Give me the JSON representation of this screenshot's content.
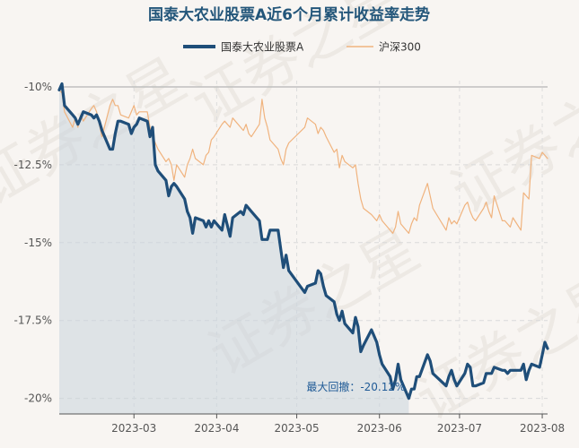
{
  "chart_data": {
    "type": "line",
    "title": "国泰大农业股票A近6个月累计收益率走势",
    "legend_position": "top",
    "series": [
      {
        "name": "国泰大农业股票A",
        "color": "#1f4e79",
        "points": [
          [
            "2023-02-01",
            -10.1
          ],
          [
            "2023-02-02",
            -9.9
          ],
          [
            "2023-02-03",
            -10.6
          ],
          [
            "2023-02-06",
            -10.9
          ],
          [
            "2023-02-07",
            -11.0
          ],
          [
            "2023-02-08",
            -11.2
          ],
          [
            "2023-02-09",
            -11.0
          ],
          [
            "2023-02-10",
            -10.8
          ],
          [
            "2023-02-13",
            -10.9
          ],
          [
            "2023-02-14",
            -11.0
          ],
          [
            "2023-02-15",
            -10.9
          ],
          [
            "2023-02-16",
            -11.1
          ],
          [
            "2023-02-17",
            -11.4
          ],
          [
            "2023-02-20",
            -12.0
          ],
          [
            "2023-02-21",
            -12.0
          ],
          [
            "2023-02-22",
            -11.5
          ],
          [
            "2023-02-23",
            -11.1
          ],
          [
            "2023-02-24",
            -11.1
          ],
          [
            "2023-02-27",
            -11.2
          ],
          [
            "2023-02-28",
            -11.5
          ],
          [
            "2023-03-01",
            -11.3
          ],
          [
            "2023-03-02",
            -11.2
          ],
          [
            "2023-03-03",
            -11.0
          ],
          [
            "2023-03-06",
            -11.1
          ],
          [
            "2023-03-07",
            -11.6
          ],
          [
            "2023-03-08",
            -11.3
          ],
          [
            "2023-03-09",
            -12.5
          ],
          [
            "2023-03-10",
            -12.7
          ],
          [
            "2023-03-13",
            -13.0
          ],
          [
            "2023-03-14",
            -13.5
          ],
          [
            "2023-03-15",
            -13.2
          ],
          [
            "2023-03-16",
            -13.1
          ],
          [
            "2023-03-17",
            -13.2
          ],
          [
            "2023-03-20",
            -13.6
          ],
          [
            "2023-03-21",
            -14.0
          ],
          [
            "2023-03-22",
            -14.2
          ],
          [
            "2023-03-23",
            -14.7
          ],
          [
            "2023-03-24",
            -14.2
          ],
          [
            "2023-03-27",
            -14.3
          ],
          [
            "2023-03-28",
            -14.5
          ],
          [
            "2023-03-29",
            -14.3
          ],
          [
            "2023-03-30",
            -14.5
          ],
          [
            "2023-03-31",
            -14.3
          ],
          [
            "2023-04-03",
            -14.6
          ],
          [
            "2023-04-04",
            -14.1
          ],
          [
            "2023-04-06",
            -14.8
          ],
          [
            "2023-04-07",
            -14.2
          ],
          [
            "2023-04-10",
            -14.0
          ],
          [
            "2023-04-11",
            -14.1
          ],
          [
            "2023-04-12",
            -13.8
          ],
          [
            "2023-04-13",
            -13.9
          ],
          [
            "2023-04-14",
            -14.0
          ],
          [
            "2023-04-17",
            -14.3
          ],
          [
            "2023-04-18",
            -14.9
          ],
          [
            "2023-04-19",
            -14.9
          ],
          [
            "2023-04-20",
            -14.9
          ],
          [
            "2023-04-21",
            -14.6
          ],
          [
            "2023-04-24",
            -14.6
          ],
          [
            "2023-04-25",
            -15.2
          ],
          [
            "2023-04-26",
            -15.8
          ],
          [
            "2023-04-27",
            -15.4
          ],
          [
            "2023-04-28",
            -15.9
          ],
          [
            "2023-05-04",
            -16.6
          ],
          [
            "2023-05-05",
            -16.4
          ],
          [
            "2023-05-08",
            -16.3
          ],
          [
            "2023-05-09",
            -15.9
          ],
          [
            "2023-05-10",
            -16.0
          ],
          [
            "2023-05-11",
            -16.4
          ],
          [
            "2023-05-12",
            -16.7
          ],
          [
            "2023-05-15",
            -16.9
          ],
          [
            "2023-05-16",
            -17.3
          ],
          [
            "2023-05-17",
            -17.5
          ],
          [
            "2023-05-18",
            -17.2
          ],
          [
            "2023-05-19",
            -17.6
          ],
          [
            "2023-05-22",
            -17.9
          ],
          [
            "2023-05-23",
            -17.4
          ],
          [
            "2023-05-24",
            -17.7
          ],
          [
            "2023-05-25",
            -18.5
          ],
          [
            "2023-05-26",
            -18.3
          ],
          [
            "2023-05-29",
            -17.8
          ],
          [
            "2023-05-30",
            -18.0
          ],
          [
            "2023-05-31",
            -18.2
          ],
          [
            "2023-06-01",
            -18.6
          ],
          [
            "2023-06-02",
            -18.9
          ],
          [
            "2023-06-05",
            -19.3
          ],
          [
            "2023-06-06",
            -19.7
          ],
          [
            "2023-06-07",
            -19.4
          ],
          [
            "2023-06-08",
            -18.9
          ],
          [
            "2023-06-09",
            -19.4
          ],
          [
            "2023-06-12",
            -20.0
          ],
          [
            "2023-06-13",
            -19.7
          ],
          [
            "2023-06-14",
            -19.7
          ],
          [
            "2023-06-15",
            -19.3
          ],
          [
            "2023-06-16",
            -19.3
          ],
          [
            "2023-06-19",
            -18.6
          ],
          [
            "2023-06-20",
            -18.8
          ],
          [
            "2023-06-21",
            -19.2
          ],
          [
            "2023-06-26",
            -19.6
          ],
          [
            "2023-06-27",
            -19.3
          ],
          [
            "2023-06-28",
            -19.1
          ],
          [
            "2023-06-29",
            -19.4
          ],
          [
            "2023-06-30",
            -19.6
          ],
          [
            "2023-07-03",
            -19.2
          ],
          [
            "2023-07-04",
            -18.9
          ],
          [
            "2023-07-05",
            -19.0
          ],
          [
            "2023-07-06",
            -19.6
          ],
          [
            "2023-07-07",
            -19.6
          ],
          [
            "2023-07-10",
            -19.5
          ],
          [
            "2023-07-11",
            -19.2
          ],
          [
            "2023-07-12",
            -19.2
          ],
          [
            "2023-07-13",
            -19.2
          ],
          [
            "2023-07-14",
            -19.0
          ],
          [
            "2023-07-17",
            -19.1
          ],
          [
            "2023-07-18",
            -19.1
          ],
          [
            "2023-07-19",
            -19.2
          ],
          [
            "2023-07-20",
            -19.1
          ],
          [
            "2023-07-21",
            -19.1
          ],
          [
            "2023-07-24",
            -19.1
          ],
          [
            "2023-07-25",
            -18.9
          ],
          [
            "2023-07-26",
            -19.4
          ],
          [
            "2023-07-27",
            -19.1
          ],
          [
            "2023-07-28",
            -18.9
          ],
          [
            "2023-07-31",
            -19.0
          ],
          [
            "2023-08-01",
            -18.6
          ],
          [
            "2023-08-02",
            -18.2
          ],
          [
            "2023-08-03",
            -18.4
          ]
        ]
      },
      {
        "name": "沪深300",
        "color": "#f0b37e",
        "points": [
          [
            "2023-02-01",
            -10.1
          ],
          [
            "2023-02-02",
            -10.2
          ],
          [
            "2023-02-03",
            -10.8
          ],
          [
            "2023-02-06",
            -11.3
          ],
          [
            "2023-02-07",
            -11.0
          ],
          [
            "2023-02-08",
            -11.3
          ],
          [
            "2023-02-09",
            -10.9
          ],
          [
            "2023-02-10",
            -11.1
          ],
          [
            "2023-02-13",
            -10.7
          ],
          [
            "2023-02-14",
            -10.6
          ],
          [
            "2023-02-15",
            -10.8
          ],
          [
            "2023-02-16",
            -11.2
          ],
          [
            "2023-02-17",
            -11.6
          ],
          [
            "2023-02-20",
            -10.6
          ],
          [
            "2023-02-21",
            -10.4
          ],
          [
            "2023-02-22",
            -10.6
          ],
          [
            "2023-02-23",
            -10.6
          ],
          [
            "2023-02-24",
            -10.9
          ],
          [
            "2023-02-27",
            -11.0
          ],
          [
            "2023-02-28",
            -10.8
          ],
          [
            "2023-03-01",
            -10.6
          ],
          [
            "2023-03-02",
            -10.9
          ],
          [
            "2023-03-03",
            -10.8
          ],
          [
            "2023-03-06",
            -10.8
          ],
          [
            "2023-03-07",
            -11.3
          ],
          [
            "2023-03-08",
            -11.6
          ],
          [
            "2023-03-09",
            -11.8
          ],
          [
            "2023-03-10",
            -12.0
          ],
          [
            "2023-03-13",
            -12.4
          ],
          [
            "2023-03-14",
            -12.3
          ],
          [
            "2023-03-15",
            -12.5
          ],
          [
            "2023-03-16",
            -13.0
          ],
          [
            "2023-03-17",
            -12.5
          ],
          [
            "2023-03-20",
            -12.9
          ],
          [
            "2023-03-21",
            -12.5
          ],
          [
            "2023-03-22",
            -12.3
          ],
          [
            "2023-03-23",
            -12.0
          ],
          [
            "2023-03-24",
            -12.3
          ],
          [
            "2023-03-27",
            -12.5
          ],
          [
            "2023-03-28",
            -12.2
          ],
          [
            "2023-03-29",
            -12.1
          ],
          [
            "2023-03-30",
            -11.7
          ],
          [
            "2023-03-31",
            -11.6
          ],
          [
            "2023-04-03",
            -11.2
          ],
          [
            "2023-04-04",
            -11.1
          ],
          [
            "2023-04-06",
            -11.3
          ],
          [
            "2023-04-07",
            -11.0
          ],
          [
            "2023-04-10",
            -11.3
          ],
          [
            "2023-04-11",
            -11.4
          ],
          [
            "2023-04-12",
            -11.2
          ],
          [
            "2023-04-13",
            -11.5
          ],
          [
            "2023-04-14",
            -11.6
          ],
          [
            "2023-04-17",
            -11.2
          ],
          [
            "2023-04-18",
            -10.4
          ],
          [
            "2023-04-19",
            -11.0
          ],
          [
            "2023-04-20",
            -11.3
          ],
          [
            "2023-04-21",
            -11.7
          ],
          [
            "2023-04-24",
            -12.0
          ],
          [
            "2023-04-25",
            -12.3
          ],
          [
            "2023-04-26",
            -12.5
          ],
          [
            "2023-04-27",
            -12.0
          ],
          [
            "2023-04-28",
            -11.8
          ],
          [
            "2023-05-04",
            -11.3
          ],
          [
            "2023-05-05",
            -11.0
          ],
          [
            "2023-05-08",
            -11.2
          ],
          [
            "2023-05-09",
            -11.5
          ],
          [
            "2023-05-10",
            -11.3
          ],
          [
            "2023-05-11",
            -11.4
          ],
          [
            "2023-05-12",
            -11.6
          ],
          [
            "2023-05-15",
            -12.1
          ],
          [
            "2023-05-16",
            -12.0
          ],
          [
            "2023-05-17",
            -12.6
          ],
          [
            "2023-05-18",
            -12.2
          ],
          [
            "2023-05-19",
            -12.4
          ],
          [
            "2023-05-22",
            -12.6
          ],
          [
            "2023-05-23",
            -12.5
          ],
          [
            "2023-05-24",
            -13.1
          ],
          [
            "2023-05-25",
            -13.6
          ],
          [
            "2023-05-26",
            -13.9
          ],
          [
            "2023-05-29",
            -14.1
          ],
          [
            "2023-05-30",
            -14.2
          ],
          [
            "2023-05-31",
            -14.3
          ],
          [
            "2023-06-01",
            -14.1
          ],
          [
            "2023-06-02",
            -14.3
          ],
          [
            "2023-06-05",
            -14.6
          ],
          [
            "2023-06-06",
            -14.7
          ],
          [
            "2023-06-07",
            -14.5
          ],
          [
            "2023-06-08",
            -14.0
          ],
          [
            "2023-06-09",
            -14.4
          ],
          [
            "2023-06-12",
            -14.7
          ],
          [
            "2023-06-13",
            -14.4
          ],
          [
            "2023-06-14",
            -14.2
          ],
          [
            "2023-06-15",
            -14.3
          ],
          [
            "2023-06-16",
            -13.8
          ],
          [
            "2023-06-19",
            -13.1
          ],
          [
            "2023-06-20",
            -13.5
          ],
          [
            "2023-06-21",
            -13.9
          ],
          [
            "2023-06-26",
            -14.6
          ],
          [
            "2023-06-27",
            -14.2
          ],
          [
            "2023-06-28",
            -14.4
          ],
          [
            "2023-06-29",
            -14.3
          ],
          [
            "2023-06-30",
            -14.4
          ],
          [
            "2023-07-03",
            -13.8
          ],
          [
            "2023-07-04",
            -13.7
          ],
          [
            "2023-07-05",
            -14.0
          ],
          [
            "2023-07-06",
            -14.2
          ],
          [
            "2023-07-07",
            -14.3
          ],
          [
            "2023-07-10",
            -13.9
          ],
          [
            "2023-07-11",
            -13.7
          ],
          [
            "2023-07-12",
            -14.0
          ],
          [
            "2023-07-13",
            -14.2
          ],
          [
            "2023-07-14",
            -13.5
          ],
          [
            "2023-07-17",
            -14.3
          ],
          [
            "2023-07-18",
            -14.3
          ],
          [
            "2023-07-19",
            -14.4
          ],
          [
            "2023-07-20",
            -14.5
          ],
          [
            "2023-07-21",
            -14.2
          ],
          [
            "2023-07-24",
            -14.6
          ],
          [
            "2023-07-25",
            -13.4
          ],
          [
            "2023-07-26",
            -13.5
          ],
          [
            "2023-07-27",
            -13.6
          ],
          [
            "2023-07-28",
            -12.2
          ],
          [
            "2023-07-31",
            -12.3
          ],
          [
            "2023-08-01",
            -12.1
          ],
          [
            "2023-08-02",
            -12.2
          ],
          [
            "2023-08-03",
            -12.3
          ]
        ]
      }
    ],
    "x_axis": {
      "type": "date",
      "range": [
        "2023-02-01",
        "2023-08-03"
      ],
      "ticks": [
        "2023-03-01",
        "2023-04-01",
        "2023-05-01",
        "2023-06-01",
        "2023-07-01",
        "2023-08-01"
      ],
      "tick_labels": [
        "2023-03",
        "2023-04",
        "2023-05",
        "2023-06",
        "2023-07",
        "2023-08"
      ]
    },
    "y_axis": {
      "ylim": [
        -20.5,
        -9.8
      ],
      "ticks": [
        -10,
        -12.5,
        -15,
        -17.5,
        -20
      ],
      "tick_labels": [
        "-10%",
        "-12.5%",
        "-15%",
        "-17.5%",
        "-20%"
      ]
    },
    "grid": true,
    "annotation": {
      "text": "最大回撤：-20.12%",
      "start_date": "2023-02-01",
      "end_date": "2023-06-12"
    },
    "watermark": "证券之星"
  }
}
